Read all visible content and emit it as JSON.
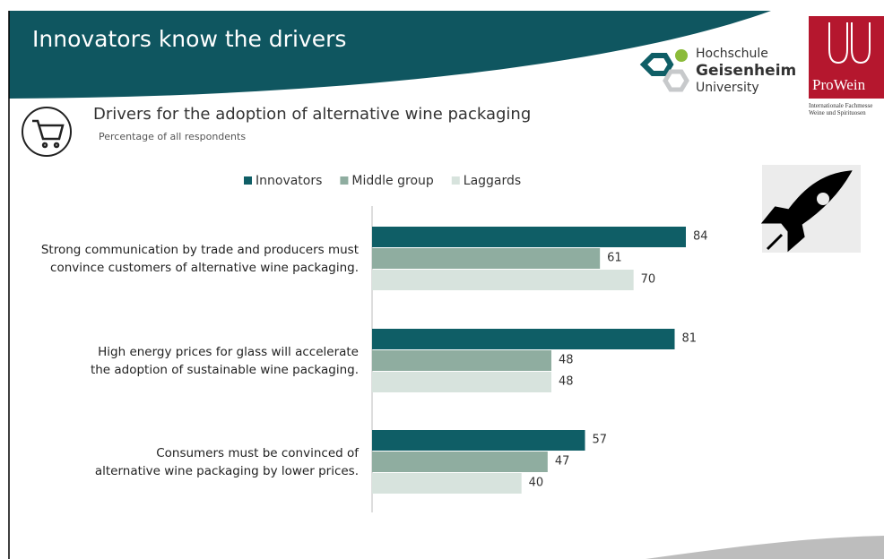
{
  "header": {
    "title": "Innovators know the drivers"
  },
  "logos": {
    "university": [
      "Hochschule",
      "Geisenheim",
      "University"
    ],
    "fair": "ProWein",
    "fair_subtitle": "Internationale Fachmesse\nWeine und Spirituosen"
  },
  "chart_data": {
    "type": "bar",
    "orientation": "horizontal",
    "title": "Drivers for the adoption of alternative wine packaging",
    "subtitle": "Percentage of all respondents",
    "categories": [
      "Strong communication by trade and producers must\nconvince customers of alternative wine packaging.",
      "High energy prices for glass will accelerate\nthe adoption of sustainable wine packaging.",
      "Consumers must be convinced of\nalternative wine packaging by lower prices."
    ],
    "series": [
      {
        "name": "Innovators",
        "color": "#0f5e66",
        "values": [
          84,
          81,
          57
        ]
      },
      {
        "name": "Middle group",
        "color": "#8fada0",
        "values": [
          61,
          48,
          47
        ]
      },
      {
        "name": "Laggards",
        "color": "#d7e3dd",
        "values": [
          70,
          48,
          40
        ]
      }
    ]
  }
}
